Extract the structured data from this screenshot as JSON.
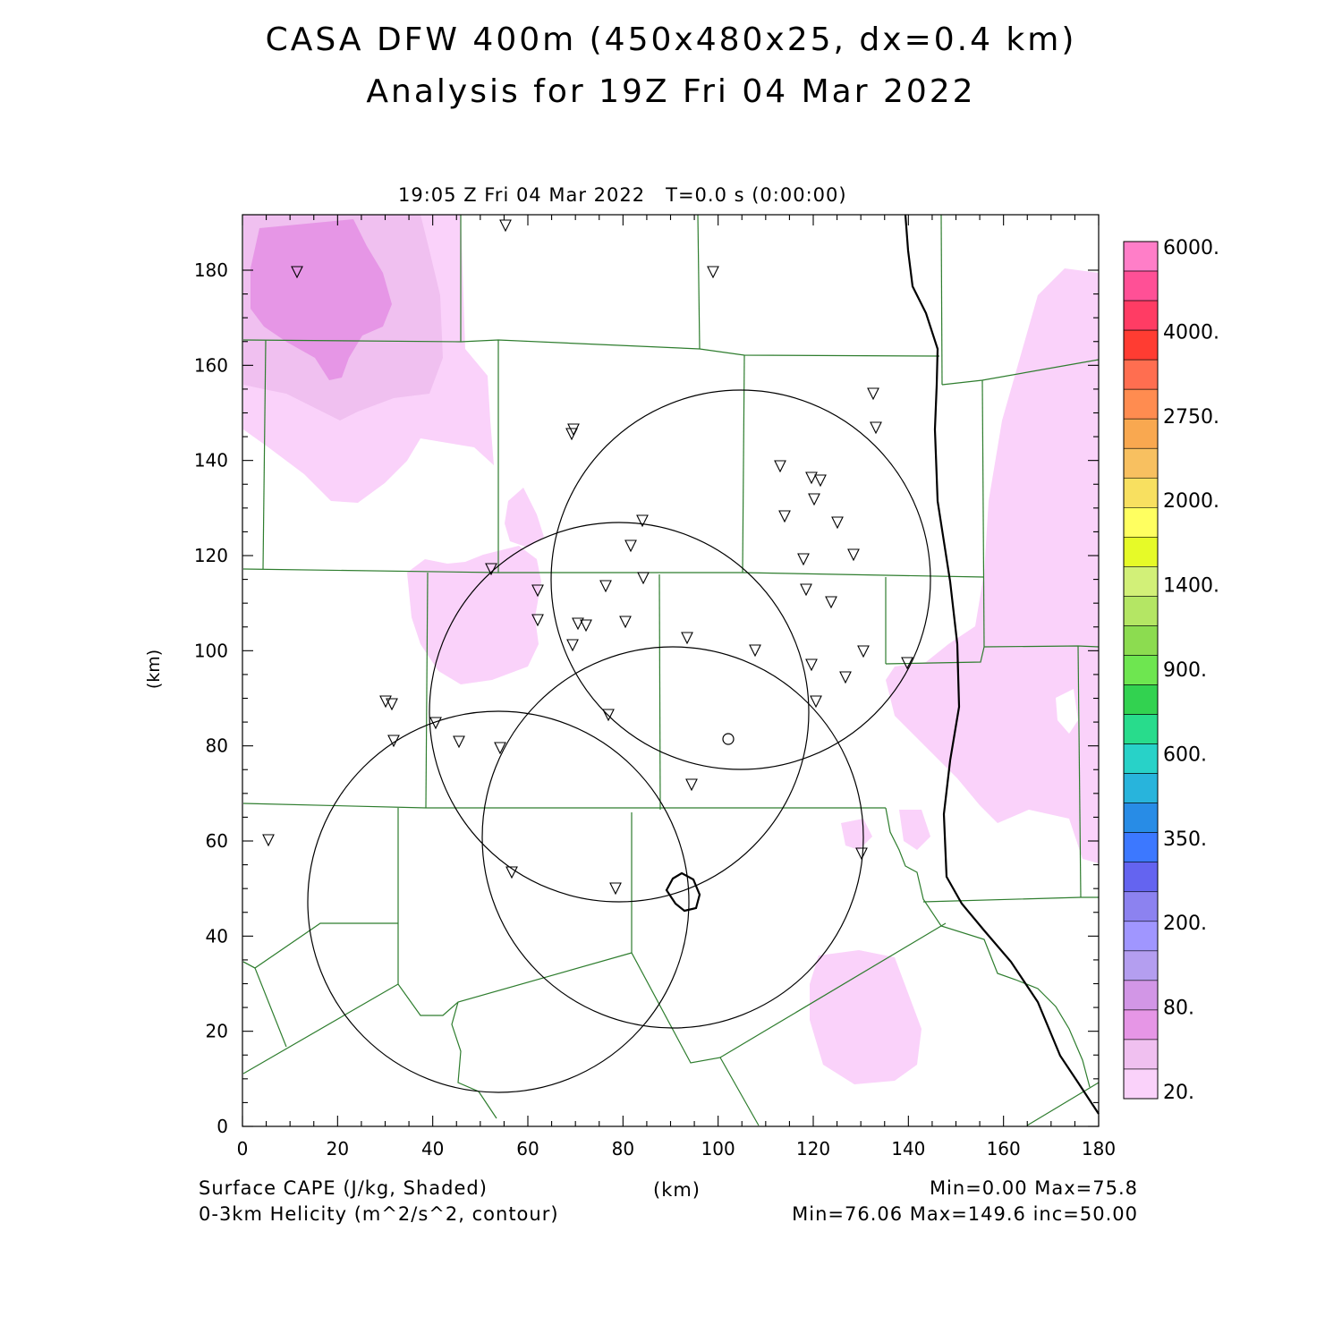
{
  "title_line1": "CASA DFW 400m (450x480x25, dx=0.4 km)",
  "title_line2": "Analysis for 19Z Fri 04 Mar 2022",
  "time_label": "19:05 Z Fri 04 Mar 2022   T=0.0 s (0:00:00)",
  "x_axis": {
    "unit_label": "(km)",
    "ticks": [
      "0",
      "20",
      "40",
      "60",
      "80",
      "100",
      "120",
      "140",
      "160",
      "180"
    ]
  },
  "y_axis": {
    "unit_label": "(km)",
    "ticks": [
      "0",
      "20",
      "40",
      "60",
      "80",
      "100",
      "120",
      "140",
      "160",
      "180"
    ]
  },
  "colorbar": {
    "labels": [
      "6000.",
      "4000.",
      "2750.",
      "2000.",
      "1400.",
      "900.",
      "600.",
      "350.",
      "200.",
      "80.",
      "20."
    ],
    "colors": [
      "#ff7ec8",
      "#ff5096",
      "#ff3c64",
      "#ff3c32",
      "#ff6e50",
      "#ff8c50",
      "#f9a850",
      "#f8c060",
      "#f8e060",
      "#ffff60",
      "#e6fa28",
      "#d2f078",
      "#b4e664",
      "#8cdc50",
      "#6ee650",
      "#32d250",
      "#28dc8c",
      "#28d2c8",
      "#28b4dc",
      "#288ce6",
      "#3c78ff",
      "#6464f0",
      "#8c82f0",
      "#a096ff",
      "#b49ef0",
      "#d296e6",
      "#e696e6",
      "#f0c0f0",
      "#fad2fa"
    ]
  },
  "footer": {
    "left1": "Surface CAPE (J/kg, Shaded)",
    "left2": "0-3km Helicity (m^2/s^2, contour)",
    "center": "(km)",
    "right1": "Min=0.00 Max=75.8",
    "right2": "Min=76.06 Max=149.6 inc=50.00"
  },
  "colors": {
    "cape_light": "#fad2fa",
    "cape_mid": "#f0c0f0",
    "cape_dark": "#e696e6",
    "county_lines": "#2e7d2e",
    "contour": "#000000"
  }
}
